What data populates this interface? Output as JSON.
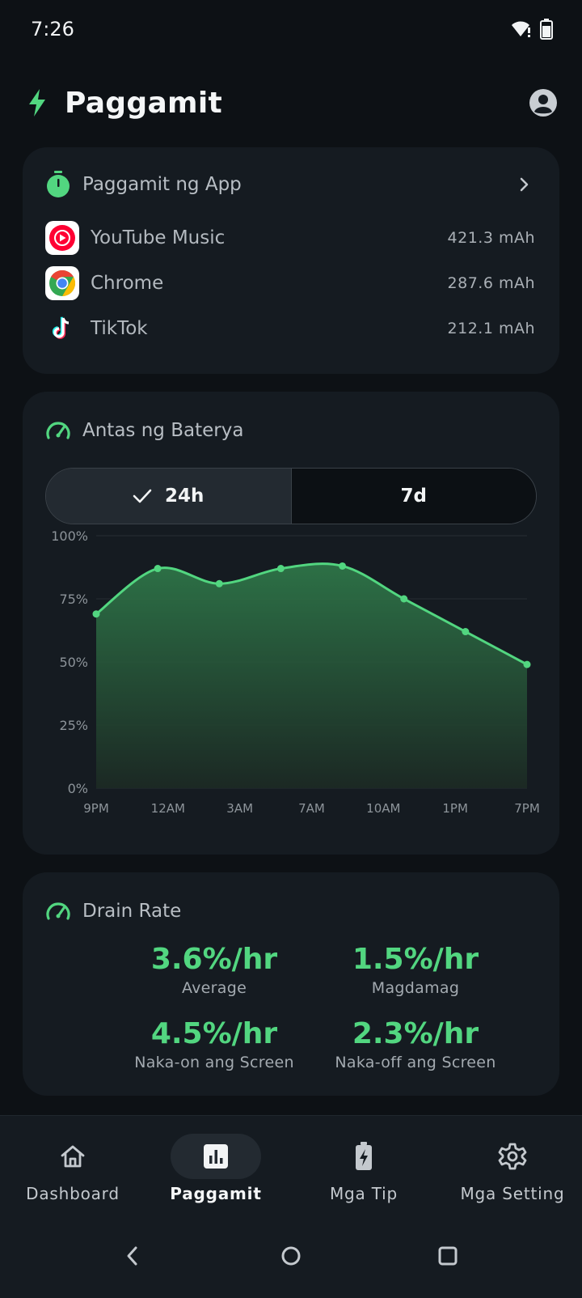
{
  "status_bar": {
    "time": "7:26",
    "icons": [
      "wifi-alert-icon",
      "battery-icon"
    ]
  },
  "header": {
    "title": "Paggamit",
    "icons": [
      "bolt-icon",
      "account-icon"
    ]
  },
  "app_usage": {
    "title": "Paggamit ng App",
    "apps": [
      {
        "name": "YouTube Music",
        "value": "421.3 mAh",
        "icon": "youtube-music-icon"
      },
      {
        "name": "Chrome",
        "value": "287.6 mAh",
        "icon": "chrome-icon"
      },
      {
        "name": "TikTok",
        "value": "212.1 mAh",
        "icon": "tiktok-icon"
      }
    ]
  },
  "battery_level": {
    "title": "Antas ng Baterya",
    "tabs": [
      {
        "label": "24h",
        "selected": true
      },
      {
        "label": "7d",
        "selected": false
      }
    ]
  },
  "chart_data": {
    "type": "area",
    "x": [
      "9PM",
      "12AM",
      "3AM",
      "7AM",
      "10AM",
      "1PM",
      "7PM"
    ],
    "y_ticks": [
      "100%",
      "75%",
      "50%",
      "25%",
      "0%"
    ],
    "ylim": [
      0,
      100
    ],
    "points": [
      {
        "t": 0,
        "v": 69
      },
      {
        "t": 3,
        "v": 87
      },
      {
        "t": 6,
        "v": 81
      },
      {
        "t": 9,
        "v": 87
      },
      {
        "t": 12,
        "v": 88
      },
      {
        "t": 15,
        "v": 75
      },
      {
        "t": 18,
        "v": 62
      },
      {
        "t": 21,
        "v": 49
      }
    ],
    "line_color": "#52d680",
    "grid": true
  },
  "drain_rate": {
    "title": "Drain Rate",
    "stats": [
      {
        "value": "3.6%/hr",
        "label": "Average"
      },
      {
        "value": "1.5%/hr",
        "label": "Magdamag"
      },
      {
        "value": "4.5%/hr",
        "label": "Naka-on ang Screen"
      },
      {
        "value": "2.3%/hr",
        "label": "Naka-off ang Screen"
      }
    ]
  },
  "bottom_nav": {
    "items": [
      {
        "label": "Dashboard",
        "icon": "home-icon"
      },
      {
        "label": "Paggamit",
        "icon": "bar-chart-icon",
        "selected": true
      },
      {
        "label": "Mga Tip",
        "icon": "battery-charging-icon"
      },
      {
        "label": "Mga Setting",
        "icon": "gear-icon"
      }
    ]
  },
  "colors": {
    "accent": "#52d680",
    "background": "#0d1115",
    "card": "#151b21"
  }
}
